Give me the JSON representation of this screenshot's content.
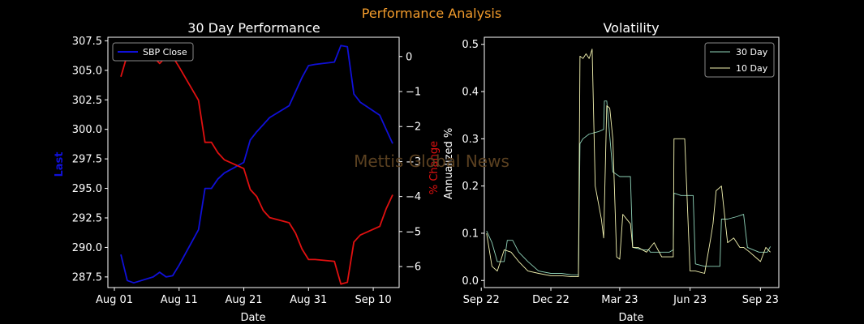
{
  "suptitle": "Performance Analysis",
  "watermark": "Mettis Global News",
  "colors": {
    "background": "#000000",
    "suptitle": "#f39c2c",
    "close_line": "#1010d8",
    "pct_line": "#e01010",
    "vol30": "#8fd3b9",
    "vol10": "#f3f3b0",
    "watermark": "#5a4020"
  },
  "chart_data": [
    {
      "type": "line",
      "title": "30 Day Performance",
      "xlabel": "Date",
      "ylabel": "Last",
      "ylabel_right": "% Change",
      "xlim": [
        "2023-07-31",
        "2023-09-14"
      ],
      "ylim": [
        286.6,
        307.8
      ],
      "ylim_right": [
        -6.6,
        0.55
      ],
      "x_ticks": [
        "Aug 01",
        "Aug 11",
        "Aug 21",
        "Aug 31",
        "Sep 10"
      ],
      "x_tick_dates": [
        "2023-08-01",
        "2023-08-11",
        "2023-08-21",
        "2023-08-31",
        "2023-09-10"
      ],
      "y_ticks": [
        "287.5",
        "290.0",
        "292.5",
        "295.0",
        "297.5",
        "300.0",
        "302.5",
        "305.0",
        "307.5"
      ],
      "y_ticks_right": [
        "0",
        "−1",
        "−2",
        "−3",
        "−4",
        "−5",
        "−6"
      ],
      "legend": "SBP Close",
      "legend_position": "upper-left",
      "grid": false,
      "series": [
        {
          "name": "SBP Close",
          "axis": "left",
          "x": [
            "2023-08-02",
            "2023-08-03",
            "2023-08-04",
            "2023-08-07",
            "2023-08-08",
            "2023-08-09",
            "2023-08-10",
            "2023-08-11",
            "2023-08-14",
            "2023-08-15",
            "2023-08-16",
            "2023-08-17",
            "2023-08-18",
            "2023-08-21",
            "2023-08-22",
            "2023-08-23",
            "2023-08-24",
            "2023-08-25",
            "2023-08-28",
            "2023-08-29",
            "2023-08-30",
            "2023-08-31",
            "2023-09-01",
            "2023-09-04",
            "2023-09-05",
            "2023-09-06",
            "2023-09-07",
            "2023-09-08",
            "2023-09-11",
            "2023-09-12",
            "2023-09-13"
          ],
          "values": [
            289.4,
            287.2,
            287.0,
            287.5,
            287.9,
            287.5,
            287.6,
            288.5,
            291.5,
            295.0,
            295.0,
            295.8,
            296.3,
            297.2,
            299.1,
            299.8,
            300.4,
            301.0,
            302.0,
            303.2,
            304.4,
            305.4,
            305.5,
            305.7,
            307.1,
            307.0,
            303.0,
            302.3,
            301.2,
            300.0,
            298.8
          ]
        },
        {
          "name": "% Change",
          "axis": "right",
          "x": [
            "2023-08-02",
            "2023-08-03",
            "2023-08-04",
            "2023-08-07",
            "2023-08-08",
            "2023-08-09",
            "2023-08-10",
            "2023-08-11",
            "2023-08-14",
            "2023-08-15",
            "2023-08-16",
            "2023-08-17",
            "2023-08-18",
            "2023-08-21",
            "2023-08-22",
            "2023-08-23",
            "2023-08-24",
            "2023-08-25",
            "2023-08-28",
            "2023-08-29",
            "2023-08-30",
            "2023-08-31",
            "2023-09-01",
            "2023-09-04",
            "2023-09-05",
            "2023-09-06",
            "2023-09-07",
            "2023-09-08",
            "2023-09-11",
            "2023-09-12",
            "2023-09-13"
          ],
          "values": [
            -0.58,
            0.05,
            0.15,
            0.0,
            -0.2,
            0.0,
            0.0,
            -0.3,
            -1.25,
            -2.45,
            -2.45,
            -2.75,
            -2.95,
            -3.2,
            -3.8,
            -4.0,
            -4.4,
            -4.6,
            -4.75,
            -5.05,
            -5.5,
            -5.8,
            -5.8,
            -5.85,
            -6.5,
            -6.45,
            -5.3,
            -5.1,
            -4.85,
            -4.35,
            -3.95
          ]
        }
      ]
    },
    {
      "type": "line",
      "title": "Volatility",
      "xlabel": "Date",
      "ylabel": "Annualized %",
      "xlim": [
        "2022-09-05",
        "2023-09-25"
      ],
      "ylim": [
        -0.015,
        0.515
      ],
      "x_ticks": [
        "Sep 22",
        "Dec 22",
        "Mar 23",
        "Jun 23",
        "Sep 23"
      ],
      "x_tick_dates": [
        "2022-09-01",
        "2022-12-01",
        "2023-03-01",
        "2023-06-01",
        "2023-09-01"
      ],
      "y_ticks": [
        "0.0",
        "0.1",
        "0.2",
        "0.3",
        "0.4",
        "0.5"
      ],
      "legend_position": "upper-right",
      "grid": false,
      "series": [
        {
          "name": "30 Day",
          "x": [
            "2022-09-08",
            "2022-09-15",
            "2022-09-22",
            "2022-10-01",
            "2022-10-05",
            "2022-10-12",
            "2022-10-20",
            "2022-11-01",
            "2022-11-15",
            "2022-12-01",
            "2022-12-15",
            "2022-12-28",
            "2023-01-06",
            "2023-01-08",
            "2023-01-12",
            "2023-01-20",
            "2023-02-01",
            "2023-02-08",
            "2023-02-09",
            "2023-02-12",
            "2023-02-20",
            "2023-03-01",
            "2023-03-15",
            "2023-03-18",
            "2023-04-01",
            "2023-04-08",
            "2023-04-10",
            "2023-04-20",
            "2023-05-05",
            "2023-05-10",
            "2023-05-11",
            "2023-05-20",
            "2023-06-01",
            "2023-06-05",
            "2023-06-08",
            "2023-06-20",
            "2023-07-01",
            "2023-07-10",
            "2023-07-12",
            "2023-07-20",
            "2023-08-01",
            "2023-08-10",
            "2023-08-15",
            "2023-08-30",
            "2023-09-10",
            "2023-09-14"
          ],
          "values": [
            0.105,
            0.08,
            0.04,
            0.04,
            0.085,
            0.085,
            0.06,
            0.04,
            0.02,
            0.015,
            0.015,
            0.012,
            0.012,
            0.29,
            0.3,
            0.31,
            0.315,
            0.32,
            0.38,
            0.38,
            0.23,
            0.22,
            0.22,
            0.07,
            0.065,
            0.065,
            0.06,
            0.06,
            0.06,
            0.065,
            0.185,
            0.18,
            0.18,
            0.18,
            0.035,
            0.03,
            0.03,
            0.03,
            0.13,
            0.13,
            0.135,
            0.14,
            0.07,
            0.06,
            0.06,
            0.072
          ]
        },
        {
          "name": "10 Day",
          "x": [
            "2022-09-08",
            "2022-09-15",
            "2022-09-22",
            "2022-10-01",
            "2022-10-10",
            "2022-10-20",
            "2022-11-01",
            "2022-11-15",
            "2022-12-01",
            "2022-12-15",
            "2022-12-28",
            "2023-01-06",
            "2023-01-08",
            "2023-01-12",
            "2023-01-16",
            "2023-01-20",
            "2023-01-24",
            "2023-01-28",
            "2023-02-05",
            "2023-02-08",
            "2023-02-12",
            "2023-02-16",
            "2023-02-20",
            "2023-02-25",
            "2023-03-01",
            "2023-03-05",
            "2023-03-15",
            "2023-03-18",
            "2023-03-25",
            "2023-04-05",
            "2023-04-10",
            "2023-04-15",
            "2023-04-25",
            "2023-05-05",
            "2023-05-10",
            "2023-05-11",
            "2023-05-20",
            "2023-05-25",
            "2023-06-01",
            "2023-06-08",
            "2023-06-20",
            "2023-06-28",
            "2023-07-01",
            "2023-07-05",
            "2023-07-12",
            "2023-07-20",
            "2023-07-28",
            "2023-08-05",
            "2023-08-10",
            "2023-08-18",
            "2023-08-25",
            "2023-09-01",
            "2023-09-08",
            "2023-09-14"
          ],
          "values": [
            0.1,
            0.03,
            0.02,
            0.065,
            0.06,
            0.04,
            0.02,
            0.015,
            0.01,
            0.01,
            0.008,
            0.008,
            0.475,
            0.47,
            0.48,
            0.47,
            0.49,
            0.2,
            0.13,
            0.09,
            0.37,
            0.365,
            0.3,
            0.05,
            0.045,
            0.14,
            0.12,
            0.07,
            0.07,
            0.06,
            0.07,
            0.08,
            0.05,
            0.05,
            0.05,
            0.3,
            0.3,
            0.3,
            0.02,
            0.02,
            0.015,
            0.09,
            0.12,
            0.19,
            0.2,
            0.08,
            0.09,
            0.07,
            0.07,
            0.06,
            0.05,
            0.04,
            0.07,
            0.06
          ]
        }
      ]
    }
  ]
}
